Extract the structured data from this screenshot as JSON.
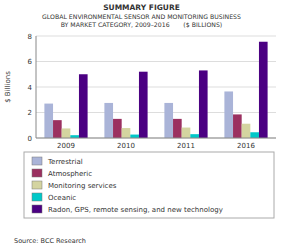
{
  "chart_data": {
    "type": "bar",
    "title": "SUMMARY FIGURE",
    "subtitle": [
      "GLOBAL ENVIRONMENTAL SENSOR AND MONITORING BUSINESS",
      "BY MARKET CATEGORY, 2009–2016       ($ BILLIONS)"
    ],
    "annotations": [
      "Source: BCC Research"
    ],
    "y_label": "$ Billions",
    "categories": [
      "2009",
      "2010",
      "2011",
      "2016"
    ],
    "series": [
      {
        "name": "Terrestrial",
        "color": "#aab4d8",
        "values": [
          2.7,
          2.75,
          2.75,
          3.65
        ]
      },
      {
        "name": "Atmospheric",
        "color": "#9b3060",
        "values": [
          1.4,
          1.5,
          1.5,
          1.85
        ]
      },
      {
        "name": "Monitoring services",
        "color": "#d4d4a0",
        "values": [
          0.75,
          0.78,
          0.82,
          1.12
        ]
      },
      {
        "name": "Oceanic",
        "color": "#00c8c8",
        "values": [
          0.22,
          0.27,
          0.3,
          0.45
        ]
      },
      {
        "name": "Radon, GPS, remote sensing, and new technology",
        "color": "#4b0082",
        "values": [
          5.0,
          5.2,
          5.3,
          7.55
        ]
      }
    ],
    "ylim": [
      0,
      8
    ],
    "yticks": [
      0,
      2,
      4,
      6,
      8
    ],
    "grid": true,
    "legend": "bottom"
  }
}
